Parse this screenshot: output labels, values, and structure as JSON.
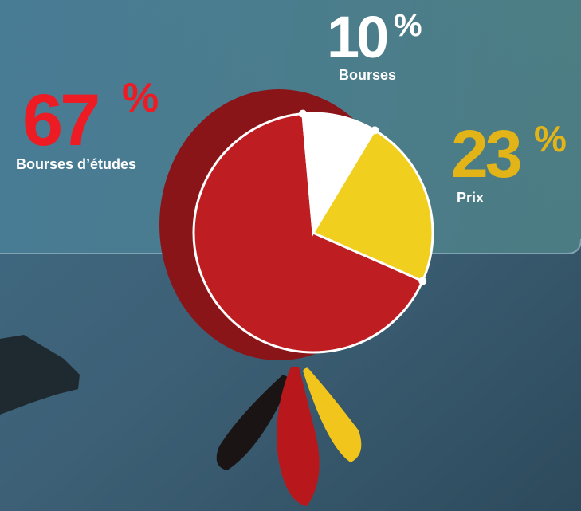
{
  "chart_data": {
    "type": "pie",
    "categories": [
      "Bourses d’études",
      "Bourses",
      "Prix"
    ],
    "values": [
      67,
      10,
      23
    ],
    "unit": "%",
    "colors": [
      "#be1e22",
      "#ffffff",
      "#f0cf1e"
    ]
  }
}
